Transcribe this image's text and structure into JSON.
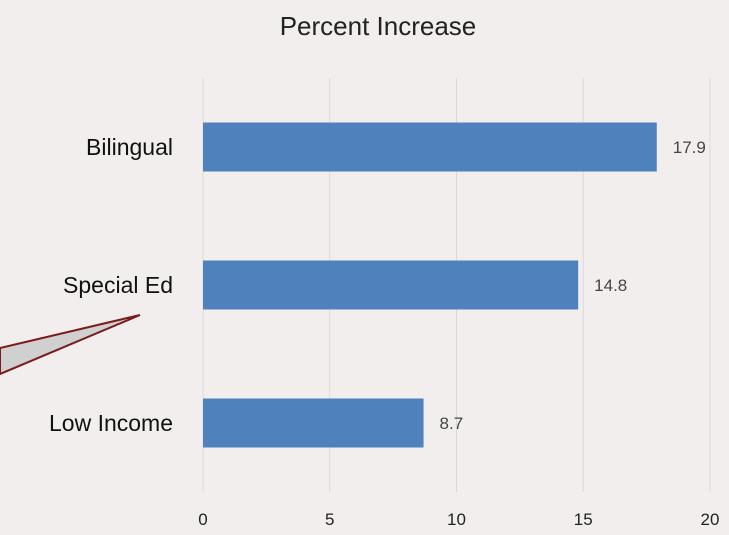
{
  "chart_data": {
    "type": "bar",
    "orientation": "horizontal",
    "title": "Percent Increase",
    "categories": [
      "Bilingual",
      "Special Ed",
      "Low Income"
    ],
    "values": [
      17.9,
      14.8,
      8.7
    ],
    "data_labels": [
      "17.9",
      "14.8",
      "8.7"
    ],
    "xlim": [
      0,
      20
    ],
    "x_ticks": [
      0,
      5,
      10,
      15,
      20
    ],
    "grid": "vertical",
    "legend": "none",
    "bar_color": "#4f81bd",
    "grid_color": "#d9d9d9",
    "callout_color": "#7b1c1c",
    "callout_fill": "#d0d0d0"
  }
}
